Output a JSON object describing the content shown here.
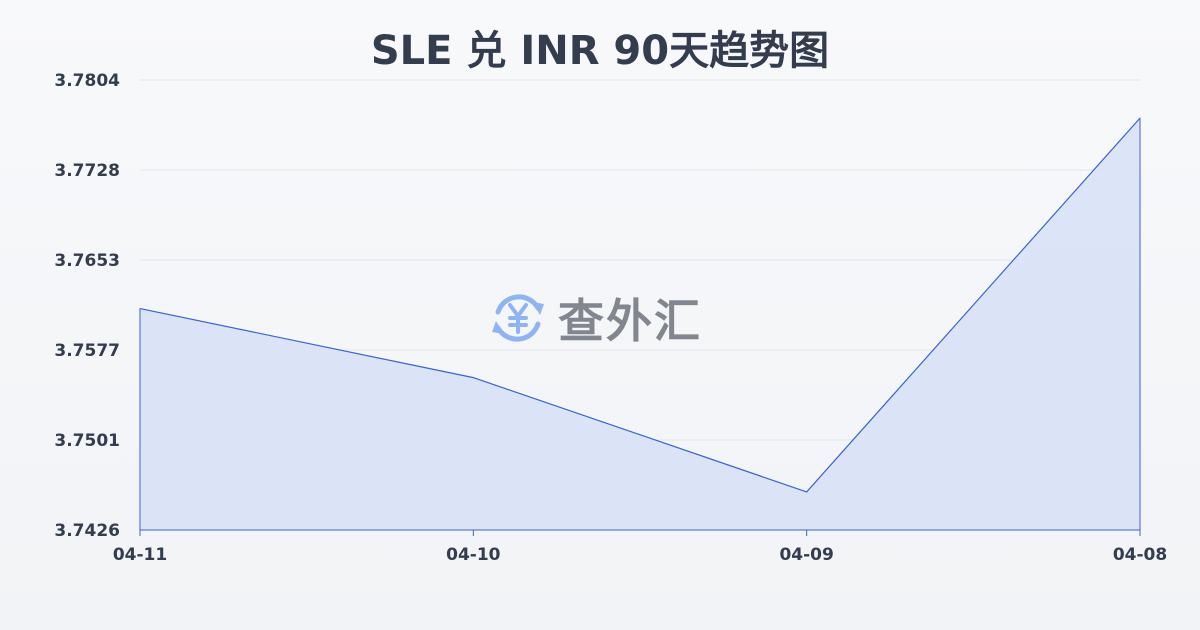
{
  "chart_data": {
    "type": "area",
    "title": "SLE 兑 INR 90天趋势图",
    "categories": [
      "04-11",
      "04-10",
      "04-09",
      "04-08"
    ],
    "values": [
      3.7612,
      3.7554,
      3.7458,
      3.7772
    ],
    "yticks": [
      "3.7804",
      "3.7728",
      "3.7653",
      "3.7577",
      "3.7501",
      "3.7426"
    ],
    "ylim": [
      3.7426,
      3.7804
    ],
    "grid": true,
    "colors": {
      "line": "#3a63d0",
      "fill": "#d8e2f6",
      "grid": "#e3e6ea"
    }
  },
  "watermark": {
    "text": "查外汇",
    "icon": "yen-exchange-icon",
    "icon_color": "#8fb4f5"
  }
}
